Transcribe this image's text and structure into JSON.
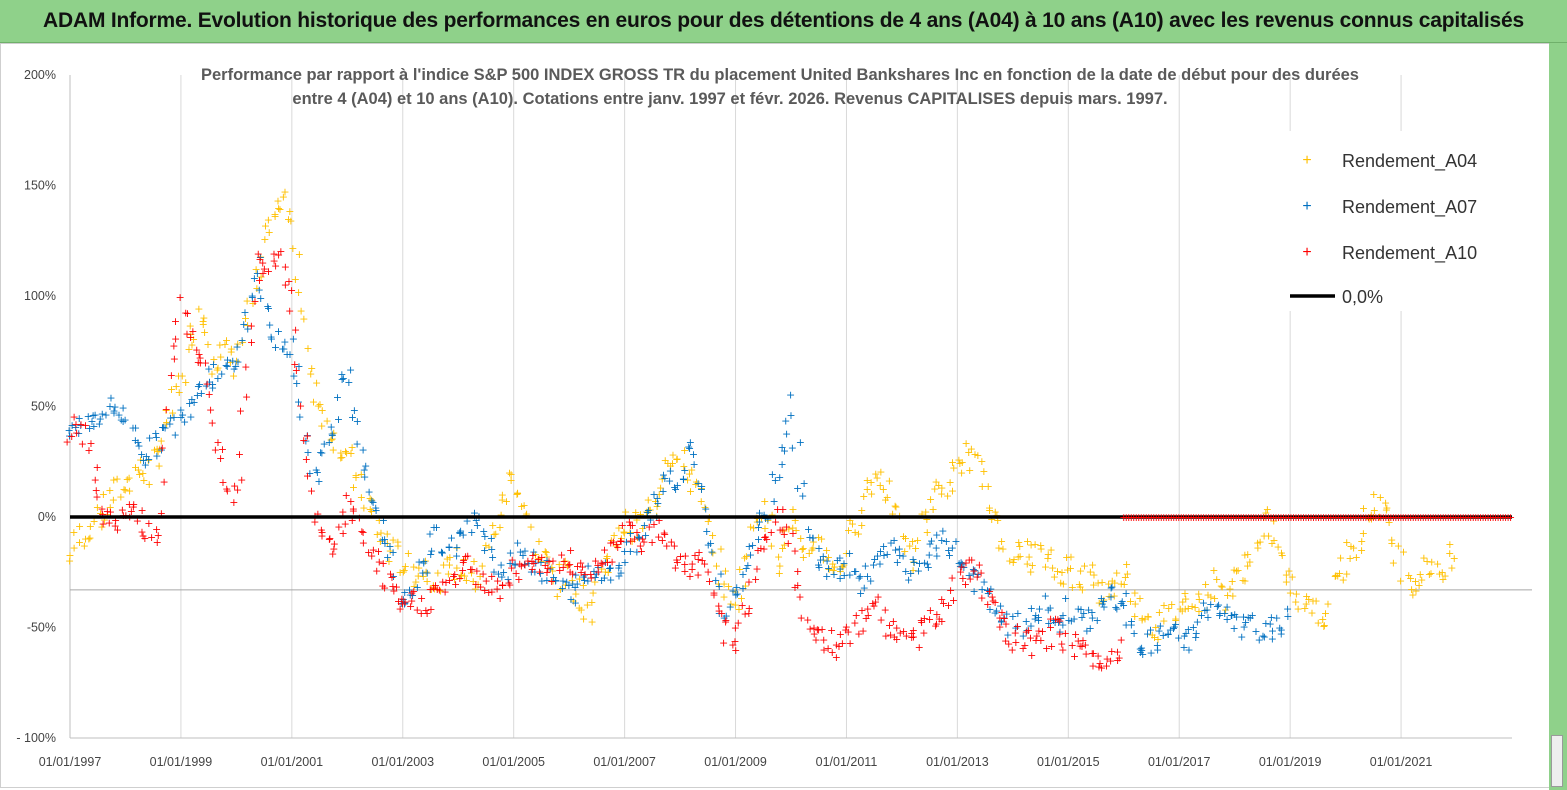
{
  "header": {
    "title": "ADAM Informe. Evolution historique des performances en euros pour des détentions de 4 ans (A04) à 10 ans (A10) avec les revenus connus capitalisés"
  },
  "colors": {
    "banner": "#8fd18a",
    "A04": "#ffc000",
    "A07": "#0070c0",
    "A10": "#ff0000",
    "zero": "#000000"
  },
  "chart_data": {
    "type": "scatter",
    "title_lines": [
      "Performance par rapport à l'indice S&P 500 INDEX GROSS TR  du placement United Bankshares Inc en fonction de la date de début pour des durées",
      "entre 4 (A04) et 10 ans (A10).  Cotations entre janv. 1997 et févr. 2026. Revenus  CAPITALISES depuis mars. 1997."
    ],
    "x_unit": "year",
    "xlim": [
      1997.0,
      2023.0
    ],
    "ylim": [
      -100,
      200
    ],
    "y_ticks": [
      200,
      150,
      100,
      50,
      0,
      -50,
      -100
    ],
    "y_tick_labels": [
      "200%",
      "150%",
      "100%",
      "50%",
      "0%",
      "-50%",
      "- 100%"
    ],
    "x_ticks": [
      1997,
      1999,
      2001,
      2003,
      2005,
      2007,
      2009,
      2011,
      2013,
      2015,
      2017,
      2019,
      2021
    ],
    "x_tick_labels": [
      "01/01/1997",
      "01/01/1999",
      "01/01/2001",
      "01/01/2003",
      "01/01/2005",
      "01/01/2007",
      "01/01/2009",
      "01/01/2011",
      "01/01/2013",
      "01/01/2015",
      "01/01/2017",
      "01/01/2019",
      "01/01/2021"
    ],
    "grid": "vertical",
    "legend_position": "top-right",
    "series": [
      {
        "name": "Rendement_A04",
        "key": "A04",
        "x": [
          1997.0,
          1997.2,
          1997.4,
          1997.6,
          1997.8,
          1998.0,
          1998.2,
          1998.4,
          1998.6,
          1998.8,
          1999.0,
          1999.2,
          1999.4,
          1999.6,
          1999.8,
          2000.0,
          2000.2,
          2000.4,
          2000.6,
          2000.8,
          2001.0,
          2001.2,
          2001.4,
          2001.6,
          2001.8,
          2002.0,
          2002.2,
          2002.4,
          2002.6,
          2002.8,
          2003.0,
          2003.2,
          2003.4,
          2003.6,
          2003.8,
          2004.0,
          2004.2,
          2004.4,
          2004.6,
          2004.8,
          2005.0,
          2005.2,
          2005.4,
          2005.6,
          2005.8,
          2006.0,
          2006.2,
          2006.4,
          2006.6,
          2006.8,
          2007.0,
          2007.2,
          2007.4,
          2007.6,
          2007.8,
          2008.0,
          2008.2,
          2008.4,
          2008.6,
          2008.8,
          2009.0,
          2009.2,
          2009.4,
          2009.6,
          2009.8,
          2010.0,
          2010.2,
          2010.4,
          2010.6,
          2010.8,
          2011.0,
          2011.2,
          2011.4,
          2011.6,
          2011.8,
          2012.0,
          2012.2,
          2012.4,
          2012.6,
          2012.8,
          2013.0,
          2013.2,
          2013.4,
          2013.6,
          2013.8,
          2014.0,
          2014.2,
          2014.4,
          2014.6,
          2014.8,
          2015.0,
          2015.2,
          2015.4,
          2015.6,
          2015.8,
          2016.0,
          2016.2,
          2016.4,
          2016.6,
          2016.8,
          2017.0,
          2017.2,
          2017.4,
          2017.6,
          2017.8,
          2018.0,
          2018.2,
          2018.4,
          2018.6,
          2018.8,
          2019.0,
          2019.2,
          2019.4,
          2019.6,
          2019.8,
          2020.0,
          2020.2,
          2020.4,
          2020.6,
          2020.8,
          2021.0,
          2021.2,
          2021.4,
          2021.6,
          2021.8,
          2022.0
        ],
        "y": [
          -18,
          -8,
          -3,
          2,
          10,
          15,
          22,
          20,
          30,
          45,
          60,
          82,
          95,
          72,
          75,
          70,
          88,
          110,
          135,
          142,
          138,
          90,
          60,
          45,
          35,
          28,
          15,
          5,
          -8,
          -15,
          -20,
          -25,
          -22,
          -28,
          -25,
          -20,
          -25,
          -28,
          -10,
          5,
          20,
          5,
          -15,
          -20,
          -30,
          -25,
          -35,
          -42,
          -22,
          -12,
          -3,
          -5,
          0,
          10,
          30,
          25,
          20,
          5,
          -15,
          -30,
          -40,
          -20,
          5,
          0,
          -20,
          0,
          -20,
          -10,
          -15,
          -25,
          -15,
          0,
          15,
          20,
          10,
          -10,
          -20,
          0,
          10,
          15,
          20,
          30,
          20,
          5,
          -10,
          -15,
          -20,
          -15,
          -20,
          -25,
          -22,
          -28,
          -25,
          -35,
          -30,
          -25,
          -38,
          -42,
          -50,
          -45,
          -40,
          -35,
          -38,
          -30,
          -35,
          -30,
          -20,
          -15,
          0,
          -15,
          -30,
          -35,
          -40,
          -45,
          -30,
          -20,
          -10,
          0,
          10,
          -5,
          -20,
          -30,
          -25,
          -20,
          -25,
          -15
        ],
        "jitter": 7
      },
      {
        "name": "Rendement_A07",
        "key": "A07",
        "x": [
          1997.0,
          1997.2,
          1997.4,
          1997.6,
          1997.8,
          1998.0,
          1998.2,
          1998.4,
          1998.6,
          1998.8,
          1999.0,
          1999.2,
          1999.4,
          1999.6,
          1999.8,
          2000.0,
          2000.2,
          2000.4,
          2000.6,
          2000.8,
          2001.0,
          2001.2,
          2001.4,
          2001.6,
          2001.8,
          2002.0,
          2002.2,
          2002.4,
          2002.6,
          2002.8,
          2003.0,
          2003.2,
          2003.4,
          2003.6,
          2003.8,
          2004.0,
          2004.2,
          2004.4,
          2004.6,
          2004.8,
          2005.0,
          2005.2,
          2005.4,
          2005.6,
          2005.8,
          2006.0,
          2006.2,
          2006.4,
          2006.6,
          2006.8,
          2007.0,
          2007.2,
          2007.4,
          2007.6,
          2007.8,
          2008.0,
          2008.2,
          2008.4,
          2008.6,
          2008.8,
          2009.0,
          2009.2,
          2009.4,
          2009.6,
          2009.8,
          2010.0,
          2010.2,
          2010.4,
          2010.6,
          2010.8,
          2011.0,
          2011.2,
          2011.4,
          2011.6,
          2011.8,
          2012.0,
          2012.2,
          2012.4,
          2012.6,
          2012.8,
          2013.0,
          2013.2,
          2013.4,
          2013.6,
          2013.8,
          2014.0,
          2014.2,
          2014.4,
          2014.6,
          2014.8,
          2015.0,
          2015.2,
          2015.4,
          2015.6,
          2015.8,
          2016.0,
          2016.2,
          2016.4,
          2016.6,
          2016.8,
          2017.0,
          2017.2,
          2017.4,
          2017.6,
          2017.8,
          2018.0,
          2018.2,
          2018.4,
          2018.6,
          2018.8,
          2019.0
        ],
        "y": [
          38,
          42,
          45,
          48,
          50,
          45,
          35,
          28,
          35,
          40,
          45,
          55,
          62,
          65,
          70,
          72,
          90,
          115,
          85,
          78,
          75,
          45,
          20,
          30,
          50,
          70,
          30,
          10,
          -5,
          -15,
          -45,
          -30,
          -20,
          -8,
          -15,
          -10,
          -5,
          0,
          -15,
          -25,
          -20,
          -15,
          -20,
          -25,
          -30,
          -35,
          -30,
          -25,
          -22,
          -25,
          -20,
          -10,
          0,
          10,
          20,
          15,
          35,
          10,
          -20,
          -45,
          -35,
          -20,
          -5,
          5,
          20,
          55,
          10,
          -15,
          -20,
          -25,
          -20,
          -30,
          -25,
          -20,
          -15,
          -20,
          -25,
          -20,
          -15,
          -10,
          -18,
          -25,
          -30,
          -38,
          -45,
          -50,
          -48,
          -45,
          -40,
          -50,
          -42,
          -48,
          -45,
          -40,
          -35,
          -40,
          -55,
          -58,
          -55,
          -52,
          -55,
          -55,
          -45,
          -40,
          -45,
          -48,
          -50,
          -50,
          -52,
          -48,
          -45
        ],
        "jitter": 6
      },
      {
        "name": "Rendement_A10",
        "key": "A10",
        "x": [
          1997.0,
          1997.2,
          1997.4,
          1997.6,
          1997.8,
          1998.0,
          1998.2,
          1998.4,
          1998.6,
          1998.8,
          1999.0,
          1999.2,
          1999.4,
          1999.6,
          1999.8,
          2000.0,
          2000.2,
          2000.4,
          2000.6,
          2000.8,
          2001.0,
          2001.2,
          2001.4,
          2001.6,
          2001.8,
          2002.0,
          2002.2,
          2002.4,
          2002.6,
          2002.8,
          2003.0,
          2003.2,
          2003.4,
          2003.6,
          2003.8,
          2004.0,
          2004.2,
          2004.4,
          2004.6,
          2004.8,
          2005.0,
          2005.2,
          2005.4,
          2005.6,
          2005.8,
          2006.0,
          2006.2,
          2006.4,
          2006.6,
          2006.8,
          2007.0,
          2007.2,
          2007.4,
          2007.6,
          2007.8,
          2008.0,
          2008.2,
          2008.4,
          2008.6,
          2008.8,
          2009.0,
          2009.2,
          2009.4,
          2009.6,
          2009.8,
          2010.0,
          2010.2,
          2010.4,
          2010.6,
          2010.8,
          2011.0,
          2011.2,
          2011.4,
          2011.6,
          2011.8,
          2012.0,
          2012.2,
          2012.4,
          2012.6,
          2012.8,
          2013.0,
          2013.2,
          2013.4,
          2013.6,
          2013.8,
          2014.0,
          2014.2,
          2014.4,
          2014.6,
          2014.8,
          2015.0,
          2015.2,
          2015.4,
          2015.6,
          2015.8,
          2016.0
        ],
        "y": [
          40,
          45,
          20,
          5,
          -5,
          0,
          5,
          -5,
          -10,
          60,
          95,
          80,
          70,
          40,
          20,
          10,
          70,
          120,
          110,
          120,
          95,
          40,
          0,
          -10,
          -15,
          10,
          -5,
          -15,
          -25,
          -35,
          -40,
          -38,
          -38,
          -35,
          -30,
          -25,
          -22,
          -28,
          -30,
          -32,
          -25,
          -20,
          -18,
          -22,
          -25,
          -20,
          -22,
          -25,
          -18,
          -12,
          -5,
          -8,
          -10,
          -5,
          -15,
          -20,
          -25,
          -20,
          -30,
          -50,
          -55,
          -40,
          -20,
          -5,
          0,
          -10,
          -40,
          -50,
          -55,
          -60,
          -55,
          -50,
          -45,
          -40,
          -50,
          -55,
          -55,
          -50,
          -45,
          -40,
          -30,
          -22,
          -25,
          -40,
          -50,
          -55,
          -55,
          -58,
          -55,
          -50,
          -55,
          -60,
          -62,
          -65,
          -62,
          -55
        ],
        "jitter": 6
      },
      {
        "name": "0,0%",
        "key": "zero",
        "type": "line",
        "x": [
          1997.0,
          2023.0
        ],
        "y": [
          0,
          0
        ]
      },
      {
        "name": "A10_zero_band",
        "key": "A10",
        "x": [
          2016.0,
          2023.0
        ],
        "y": [
          0,
          0
        ],
        "note": "dense red markers along 0% after 2016"
      }
    ]
  }
}
